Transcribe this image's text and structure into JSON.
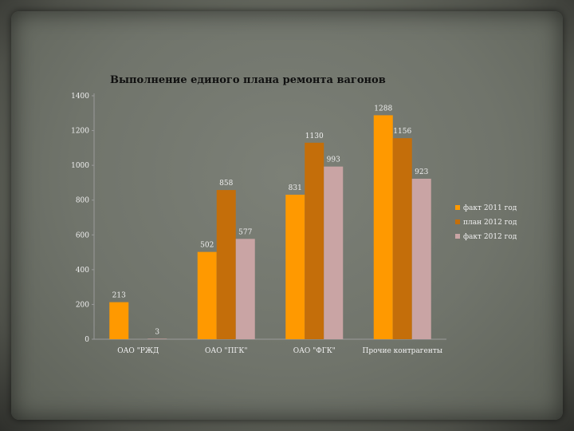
{
  "chart_data": {
    "type": "bar",
    "title": "Выполнение единого плана ремонта вагонов",
    "categories": [
      "ОАО \"РЖД",
      "ОАО \"ПГК\"",
      "ОАО \"ФГК\"",
      "Прочие контрагенты"
    ],
    "series": [
      {
        "name": "факт 2011 год",
        "values": [
          213,
          502,
          831,
          1288
        ],
        "color": "#ff9900"
      },
      {
        "name": "план 2012 год",
        "values": [
          null,
          858,
          1130,
          1156
        ],
        "color": "#c46e0a"
      },
      {
        "name": "факт 2012 год",
        "values": [
          3,
          577,
          993,
          923
        ],
        "color": "#c9a4a4"
      }
    ],
    "value_labels": [
      [
        "213",
        "502",
        "831",
        "1288"
      ],
      [
        "",
        "858",
        "1130",
        "1156"
      ],
      [
        "3",
        "577",
        "993",
        "923"
      ]
    ],
    "yticks": [
      0,
      200,
      400,
      600,
      800,
      1000,
      1200,
      1400
    ],
    "ylim": [
      0,
      1400
    ],
    "legend_position": "right",
    "grid": false
  }
}
